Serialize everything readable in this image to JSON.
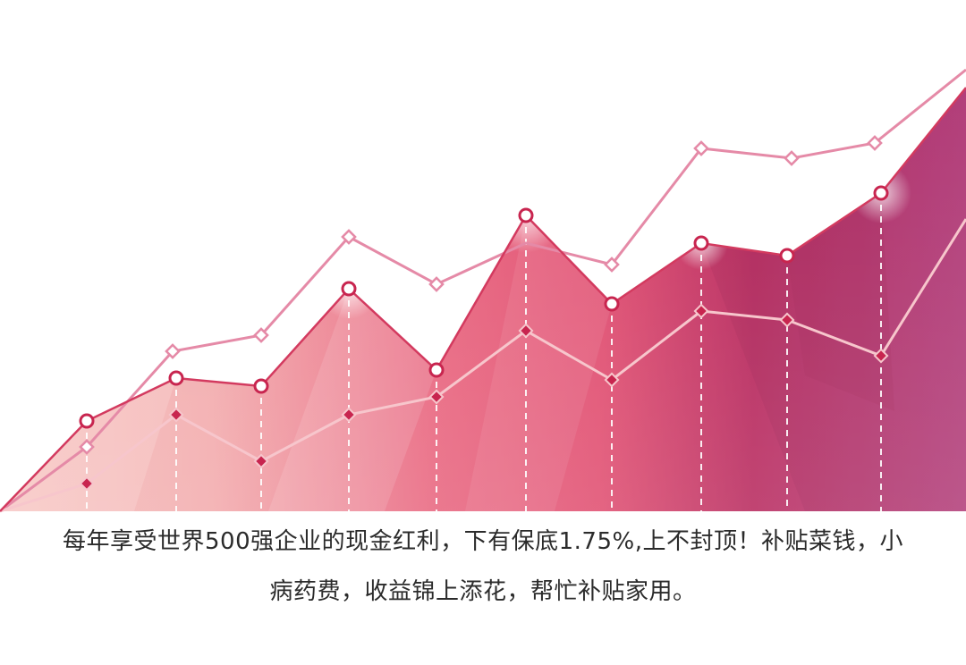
{
  "caption": {
    "line1": "每年享受世界500强企业的现金红利，下有保底1.75%,上不封顶！补贴菜钱，小",
    "line2": "病药费，收益锦上添花，帮忙补贴家用。"
  },
  "colors": {
    "area_light": "#f3b7b9",
    "area_mid": "#e25a79",
    "area_dark": "#b5285a",
    "area_purple": "#b8417f",
    "upper_line": "#e58aa7",
    "lower_line": "#f7c6cc",
    "marker_stroke": "#c8254f",
    "guide_dash": "#ffffff"
  }
}
